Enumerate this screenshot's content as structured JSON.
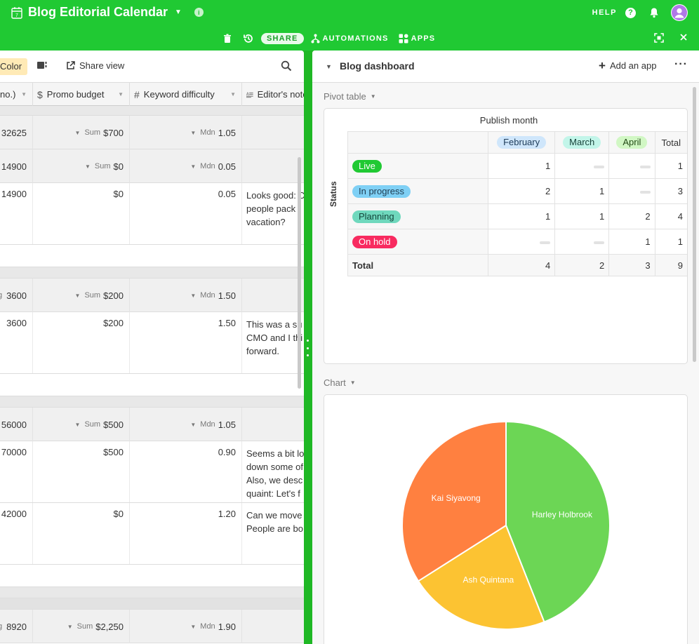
{
  "app": {
    "title": "Blog Editorial Calendar",
    "help_label": "HELP",
    "toolbar": {
      "share_label": "SHARE",
      "automations_label": "AUTOMATIONS",
      "apps_label": "APPS"
    }
  },
  "grid": {
    "color_label": "Color",
    "share_view_label": "Share view",
    "columns": [
      {
        "label": "no.)"
      },
      {
        "label": "Promo budget"
      },
      {
        "label": "Keyword difficulty"
      },
      {
        "label": "Editor's notes"
      }
    ],
    "groups": [
      {
        "a": "32625",
        "b_label": "Sum",
        "b": "$700",
        "c_label": "Mdn",
        "c": "1.05"
      },
      {
        "a": "14900",
        "b_label": "Sum",
        "b": "$0",
        "c_label": "Mdn",
        "c": "0.05"
      },
      {
        "a": "3600",
        "a_prefix": "g",
        "b_label": "Sum",
        "b": "$200",
        "c_label": "Mdn",
        "c": "1.50"
      },
      {
        "a": "56000",
        "b_label": "Sum",
        "b": "$500",
        "c_label": "Mdn",
        "c": "1.05"
      },
      {
        "a": "8920",
        "a_prefix": "g",
        "b_label": "Sum",
        "b": "$2,250",
        "c_label": "Mdn",
        "c": "1.90"
      }
    ],
    "records": [
      {
        "a": "14900",
        "b": "$0",
        "c": "0.05",
        "note": [
          "Looks good: D",
          "people pack f",
          "vacation?"
        ]
      },
      {
        "a": "3600",
        "b": "$200",
        "c": "1.50",
        "note": [
          "This was a su",
          "CMO and I thi",
          "forward."
        ]
      },
      {
        "a": "70000",
        "b": "$500",
        "c": "0.90",
        "note": [
          "Seems a bit lo",
          "down some of",
          "Also, we desc",
          "quaint: Let's f"
        ]
      },
      {
        "a": "42000",
        "b": "$0",
        "c": "1.20",
        "note": [
          "Can we move",
          "People are bo"
        ]
      }
    ]
  },
  "dashboard": {
    "title": "Blog dashboard",
    "add_app_label": "Add an app",
    "pivot": {
      "section_label": "Pivot table",
      "title": "Publish month",
      "row_axis_label": "Status",
      "columns": [
        {
          "label": "February",
          "bg": "#cfe6fb"
        },
        {
          "label": "March",
          "bg": "#c2f5e9"
        },
        {
          "label": "April",
          "bg": "#d1f7c4"
        }
      ],
      "total_label": "Total",
      "rows": [
        {
          "label": "Live",
          "bg": "#20c933",
          "fg": "#ffffff",
          "values": [
            "1",
            "",
            "",
            "1"
          ]
        },
        {
          "label": "In progress",
          "bg": "#7fd0f5",
          "fg": "#1f3d52",
          "values": [
            "2",
            "1",
            "",
            "3"
          ]
        },
        {
          "label": "Planning",
          "bg": "#6fd8bd",
          "fg": "#13443a",
          "values": [
            "1",
            "1",
            "2",
            "4"
          ]
        },
        {
          "label": "On hold",
          "bg": "#f82b60",
          "fg": "#ffffff",
          "values": [
            "",
            "",
            "1",
            "1"
          ]
        }
      ],
      "totals": [
        "4",
        "2",
        "3",
        "9"
      ]
    },
    "chart_section_label": "Chart"
  },
  "chart_data": {
    "type": "pie",
    "slices": [
      {
        "label": "Harley Holbrook",
        "value": 44,
        "color": "#6cd655"
      },
      {
        "label": "Ash Quintana",
        "value": 22,
        "color": "#fcc332"
      },
      {
        "label": "Kai Siyavong",
        "value": 34,
        "color": "#ff8040"
      }
    ]
  }
}
